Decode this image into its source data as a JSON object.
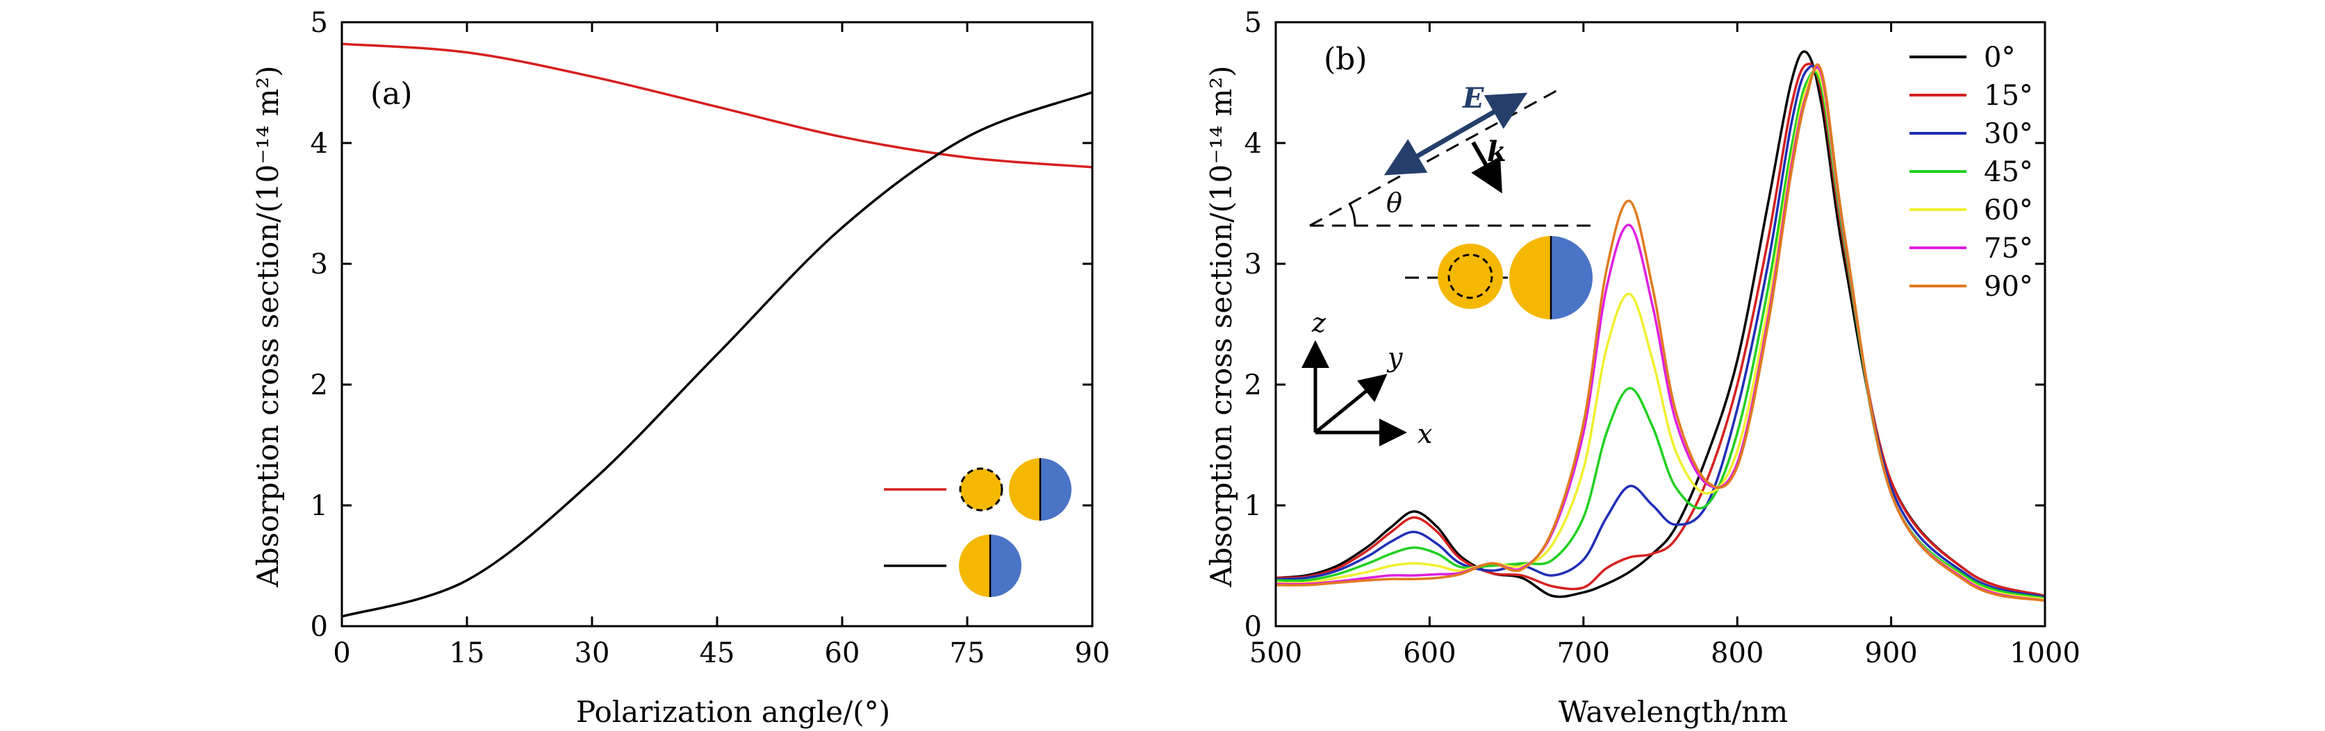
{
  "chart_data": [
    {
      "panel": "(a)",
      "type": "line",
      "xlabel": "Polarization angle/(°)",
      "ylabel": "Absorption cross section/(10⁻¹⁴ m²)",
      "xlim": [
        0,
        90
      ],
      "ylim": [
        0,
        5
      ],
      "xticks": [
        0,
        15,
        30,
        45,
        60,
        75,
        90
      ],
      "yticks": [
        0,
        1,
        2,
        3,
        4,
        5
      ],
      "grid": false,
      "legend": "bottom-right, drawn as particle schematics (no text)",
      "series": [
        {
          "color": "#d62020",
          "x": [
            0,
            15,
            30,
            45,
            60,
            75,
            90
          ],
          "y": [
            4.82,
            4.75,
            4.55,
            4.3,
            4.05,
            3.88,
            3.8
          ]
        },
        {
          "color": "#000000",
          "x": [
            0,
            15,
            30,
            45,
            60,
            75,
            90
          ],
          "y": [
            0.08,
            0.38,
            1.2,
            2.25,
            3.3,
            4.05,
            4.42
          ]
        }
      ]
    },
    {
      "panel": "(b)",
      "type": "line",
      "xlabel": "Wavelength/nm",
      "ylabel": "Absorption cross section/(10⁻¹⁴ m²)",
      "xlim": [
        500,
        1000
      ],
      "ylim": [
        0,
        5
      ],
      "xticks": [
        500,
        600,
        700,
        800,
        900,
        1000
      ],
      "yticks": [
        0,
        1,
        2,
        3,
        4,
        5
      ],
      "grid": false,
      "legend": "top-right",
      "inset_labels": {
        "field": "E",
        "wavevector": "k",
        "angle": "θ",
        "z": "z",
        "y": "y",
        "x": "x"
      },
      "x": [
        500,
        520,
        540,
        560,
        575,
        590,
        605,
        620,
        640,
        660,
        680,
        700,
        715,
        730,
        745,
        760,
        780,
        800,
        820,
        835,
        845,
        855,
        870,
        900,
        950,
        1000
      ],
      "series": [
        {
          "name": "0°",
          "color": "#000000",
          "y": [
            0.4,
            0.42,
            0.5,
            0.66,
            0.82,
            0.95,
            0.82,
            0.58,
            0.44,
            0.4,
            0.25,
            0.28,
            0.35,
            0.45,
            0.6,
            0.82,
            1.4,
            2.2,
            3.5,
            4.5,
            4.75,
            4.3,
            3.0,
            1.2,
            0.45,
            0.25
          ]
        },
        {
          "name": "15°",
          "color": "#d62020",
          "y": [
            0.4,
            0.41,
            0.48,
            0.63,
            0.78,
            0.9,
            0.78,
            0.56,
            0.44,
            0.42,
            0.33,
            0.32,
            0.48,
            0.57,
            0.6,
            0.72,
            1.2,
            2.0,
            3.2,
            4.3,
            4.65,
            4.4,
            3.1,
            1.2,
            0.45,
            0.25
          ]
        },
        {
          "name": "30°",
          "color": "#1f2fb5",
          "y": [
            0.39,
            0.4,
            0.46,
            0.58,
            0.7,
            0.78,
            0.68,
            0.52,
            0.46,
            0.5,
            0.42,
            0.55,
            0.9,
            1.16,
            1.0,
            0.84,
            1.0,
            1.8,
            3.0,
            4.15,
            4.6,
            4.45,
            3.15,
            1.15,
            0.42,
            0.24
          ]
        },
        {
          "name": "45°",
          "color": "#22d022",
          "y": [
            0.38,
            0.38,
            0.43,
            0.52,
            0.6,
            0.65,
            0.6,
            0.49,
            0.5,
            0.52,
            0.55,
            0.9,
            1.6,
            1.97,
            1.65,
            1.15,
            1.0,
            1.6,
            2.8,
            3.95,
            4.5,
            4.45,
            3.15,
            1.1,
            0.4,
            0.23
          ]
        },
        {
          "name": "60°",
          "color": "#f0f030",
          "y": [
            0.36,
            0.36,
            0.4,
            0.45,
            0.5,
            0.52,
            0.5,
            0.46,
            0.52,
            0.5,
            0.68,
            1.3,
            2.3,
            2.75,
            2.2,
            1.45,
            1.1,
            1.45,
            2.65,
            3.85,
            4.45,
            4.5,
            3.2,
            1.1,
            0.38,
            0.22
          ]
        },
        {
          "name": "75°",
          "color": "#e020e0",
          "y": [
            0.35,
            0.35,
            0.37,
            0.4,
            0.42,
            0.42,
            0.43,
            0.44,
            0.52,
            0.48,
            0.78,
            1.6,
            2.8,
            3.32,
            2.65,
            1.7,
            1.18,
            1.35,
            2.55,
            3.8,
            4.4,
            4.55,
            3.2,
            1.1,
            0.37,
            0.21
          ]
        },
        {
          "name": "90°",
          "color": "#e07a1f",
          "y": [
            0.34,
            0.34,
            0.36,
            0.38,
            0.39,
            0.39,
            0.4,
            0.43,
            0.52,
            0.47,
            0.8,
            1.68,
            2.95,
            3.52,
            2.8,
            1.78,
            1.2,
            1.32,
            2.5,
            3.75,
            4.38,
            4.58,
            3.22,
            1.1,
            0.36,
            0.21
          ]
        }
      ]
    }
  ],
  "colors": {
    "gold": "#f5b800",
    "blue": "#4a74c6",
    "arrow": "#243f6b"
  }
}
